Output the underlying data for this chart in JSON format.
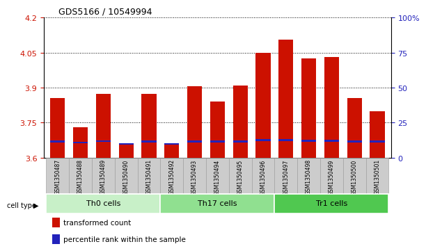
{
  "title": "GDS5166 / 10549994",
  "samples": [
    "GSM1350487",
    "GSM1350488",
    "GSM1350489",
    "GSM1350490",
    "GSM1350491",
    "GSM1350492",
    "GSM1350493",
    "GSM1350494",
    "GSM1350495",
    "GSM1350496",
    "GSM1350497",
    "GSM1350498",
    "GSM1350499",
    "GSM1350500",
    "GSM1350501"
  ],
  "red_values": [
    3.855,
    3.73,
    3.875,
    3.655,
    3.875,
    3.655,
    3.905,
    3.84,
    3.91,
    4.05,
    4.105,
    4.025,
    4.03,
    3.855,
    3.8
  ],
  "blue_positions": [
    3.666,
    3.661,
    3.667,
    3.655,
    3.666,
    3.655,
    3.666,
    3.666,
    3.666,
    3.672,
    3.672,
    3.668,
    3.668,
    3.666,
    3.666
  ],
  "cell_groups": [
    {
      "label": "Th0 cells",
      "start": 0,
      "end": 5,
      "color": "#c8f0c8"
    },
    {
      "label": "Th17 cells",
      "start": 5,
      "end": 10,
      "color": "#90e090"
    },
    {
      "label": "Tr1 cells",
      "start": 10,
      "end": 15,
      "color": "#50c850"
    }
  ],
  "ylim_left": [
    3.6,
    4.2
  ],
  "ylim_right": [
    0,
    100
  ],
  "yticks_left": [
    3.6,
    3.75,
    3.9,
    4.05,
    4.2
  ],
  "yticks_right": [
    0,
    25,
    50,
    75,
    100
  ],
  "ytick_labels_right": [
    "0",
    "25",
    "50",
    "75",
    "100%"
  ],
  "bar_width": 0.65,
  "red_color": "#cc1100",
  "blue_color": "#2222bb",
  "bar_base": 3.6,
  "bg_color": "#ffffff",
  "tick_color_left": "#cc1100",
  "tick_color_right": "#2222bb",
  "xlabel_bg": "#cccccc",
  "blue_bar_height": 0.008
}
